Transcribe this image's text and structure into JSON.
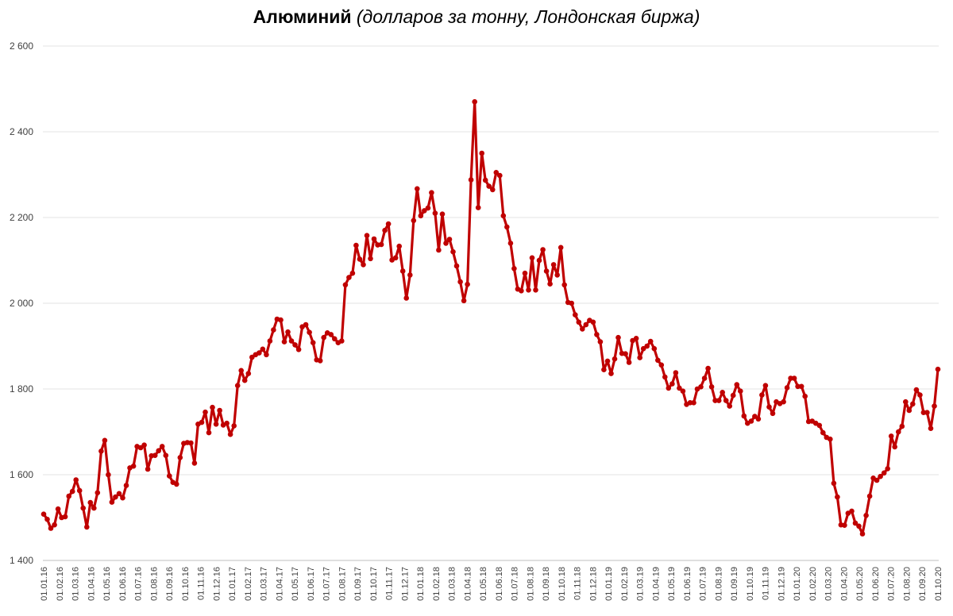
{
  "title": {
    "main": "Алюминий",
    "sub": "(долларов за тонну, Лондонская биржа)"
  },
  "chart_data": {
    "type": "line",
    "title": "Алюминий (долларов за тонну, Лондонская биржа)",
    "xlabel": "",
    "ylabel": "",
    "ylim": [
      1400,
      2600
    ],
    "yticks": [
      1400,
      1600,
      1800,
      2000,
      2200,
      2400,
      2600
    ],
    "ytick_labels": [
      "1 400",
      "1 600",
      "1 800",
      "2 000",
      "2 200",
      "2 400",
      "2 600"
    ],
    "x_start": "01.01.16",
    "x_end": "01.10.20",
    "xtick_labels": [
      "01.01.16",
      "01.02.16",
      "01.03.16",
      "01.04.16",
      "01.05.16",
      "01.06.16",
      "01.07.16",
      "01.08.16",
      "01.09.16",
      "01.10.16",
      "01.11.16",
      "01.12.16",
      "01.01.17",
      "01.02.17",
      "01.03.17",
      "01.04.17",
      "01.05.17",
      "01.06.17",
      "01.07.17",
      "01.08.17",
      "01.09.17",
      "01.10.17",
      "01.11.17",
      "01.12.17",
      "01.01.18",
      "01.02.18",
      "01.03.18",
      "01.04.18",
      "01.05.18",
      "01.06.18",
      "01.07.18",
      "01.08.18",
      "01.09.18",
      "01.10.18",
      "01.11.18",
      "01.12.18",
      "01.01.19",
      "01.02.19",
      "01.03.19",
      "01.04.19",
      "01.05.19",
      "01.06.19",
      "01.07.19",
      "01.08.19",
      "01.09.19",
      "01.10.19",
      "01.11.19",
      "01.12.19",
      "01.01.20",
      "01.02.20",
      "01.03.20",
      "01.04.20",
      "01.05.20",
      "01.06.20",
      "01.07.20",
      "01.08.20",
      "01.09.20",
      "01.10.20"
    ],
    "grid": true,
    "legend": "none",
    "series": [
      {
        "color": "#c00000",
        "values": [
          1508,
          1496,
          1475,
          1483,
          1520,
          1500,
          1502,
          1550,
          1561,
          1588,
          1563,
          1522,
          1478,
          1535,
          1522,
          1558,
          1655,
          1680,
          1600,
          1536,
          1548,
          1556,
          1546,
          1575,
          1616,
          1620,
          1666,
          1663,
          1669,
          1613,
          1644,
          1645,
          1656,
          1666,
          1645,
          1597,
          1582,
          1578,
          1640,
          1673,
          1675,
          1674,
          1627,
          1718,
          1722,
          1746,
          1698,
          1757,
          1718,
          1750,
          1716,
          1720,
          1694,
          1714,
          1808,
          1843,
          1820,
          1836,
          1874,
          1880,
          1884,
          1893,
          1880,
          1912,
          1938,
          1963,
          1961,
          1910,
          1933,
          1912,
          1903,
          1892,
          1945,
          1950,
          1932,
          1908,
          1868,
          1866,
          1920,
          1931,
          1927,
          1917,
          1908,
          1912,
          2043,
          2060,
          2070,
          2135,
          2103,
          2090,
          2158,
          2104,
          2150,
          2136,
          2137,
          2170,
          2185,
          2101,
          2106,
          2133,
          2075,
          2012,
          2066,
          2193,
          2267,
          2204,
          2216,
          2222,
          2258,
          2210,
          2124,
          2208,
          2140,
          2149,
          2120,
          2087,
          2050,
          2006,
          2044,
          2288,
          2470,
          2223,
          2350,
          2287,
          2273,
          2265,
          2305,
          2298,
          2204,
          2178,
          2140,
          2081,
          2033,
          2029,
          2070,
          2031,
          2106,
          2031,
          2100,
          2125,
          2075,
          2045,
          2090,
          2066,
          2130,
          2043,
          2002,
          2000,
          1973,
          1956,
          1940,
          1950,
          1960,
          1956,
          1927,
          1910,
          1845,
          1865,
          1836,
          1870,
          1920,
          1883,
          1882,
          1862,
          1913,
          1918,
          1873,
          1894,
          1900,
          1911,
          1894,
          1867,
          1856,
          1828,
          1802,
          1812,
          1838,
          1802,
          1795,
          1764,
          1768,
          1768,
          1800,
          1805,
          1825,
          1848,
          1805,
          1773,
          1773,
          1792,
          1773,
          1760,
          1785,
          1810,
          1795,
          1737,
          1720,
          1725,
          1736,
          1730,
          1786,
          1808,
          1758,
          1743,
          1770,
          1766,
          1770,
          1803,
          1825,
          1825,
          1806,
          1806,
          1783,
          1724,
          1725,
          1720,
          1715,
          1698,
          1687,
          1683,
          1580,
          1548,
          1483,
          1482,
          1510,
          1515,
          1487,
          1480,
          1462,
          1505,
          1550,
          1592,
          1587,
          1596,
          1604,
          1614,
          1690,
          1665,
          1700,
          1713,
          1770,
          1750,
          1765,
          1798,
          1786,
          1745,
          1745,
          1708,
          1760,
          1846
        ]
      }
    ]
  }
}
